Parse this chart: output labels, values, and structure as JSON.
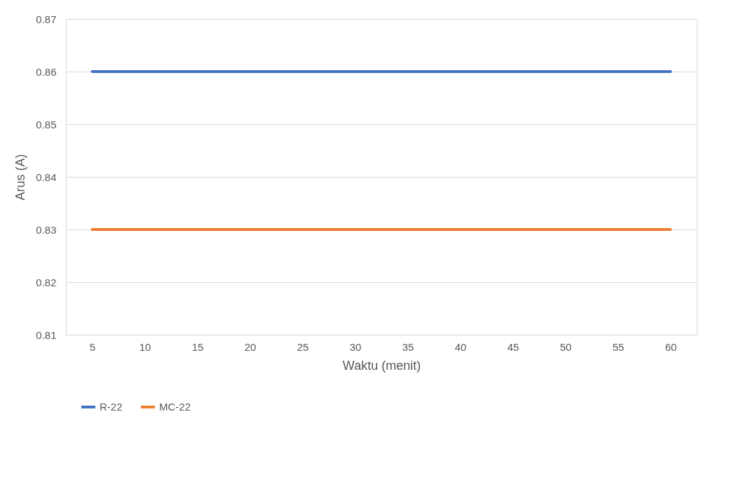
{
  "chart_data": {
    "type": "line",
    "xlabel": "Waktu (menit)",
    "ylabel": "Arus (A)",
    "categories": [
      "5",
      "10",
      "15",
      "20",
      "25",
      "30",
      "35",
      "40",
      "45",
      "50",
      "55",
      "60"
    ],
    "series": [
      {
        "name": "R-22",
        "color": "#4472c4",
        "values": [
          0.86,
          0.86,
          0.86,
          0.86,
          0.86,
          0.86,
          0.86,
          0.86,
          0.86,
          0.86,
          0.86,
          0.86
        ]
      },
      {
        "name": "MC-22",
        "color": "#ed7d31",
        "values": [
          0.83,
          0.83,
          0.83,
          0.83,
          0.83,
          0.83,
          0.83,
          0.83,
          0.83,
          0.83,
          0.83,
          0.83
        ]
      }
    ],
    "ylim": [
      0.81,
      0.87
    ],
    "yticks": [
      0.81,
      0.82,
      0.83,
      0.84,
      0.85,
      0.86,
      0.87
    ],
    "grid": "y",
    "legend": "bottom",
    "marker": "none",
    "line_style": "solid"
  }
}
